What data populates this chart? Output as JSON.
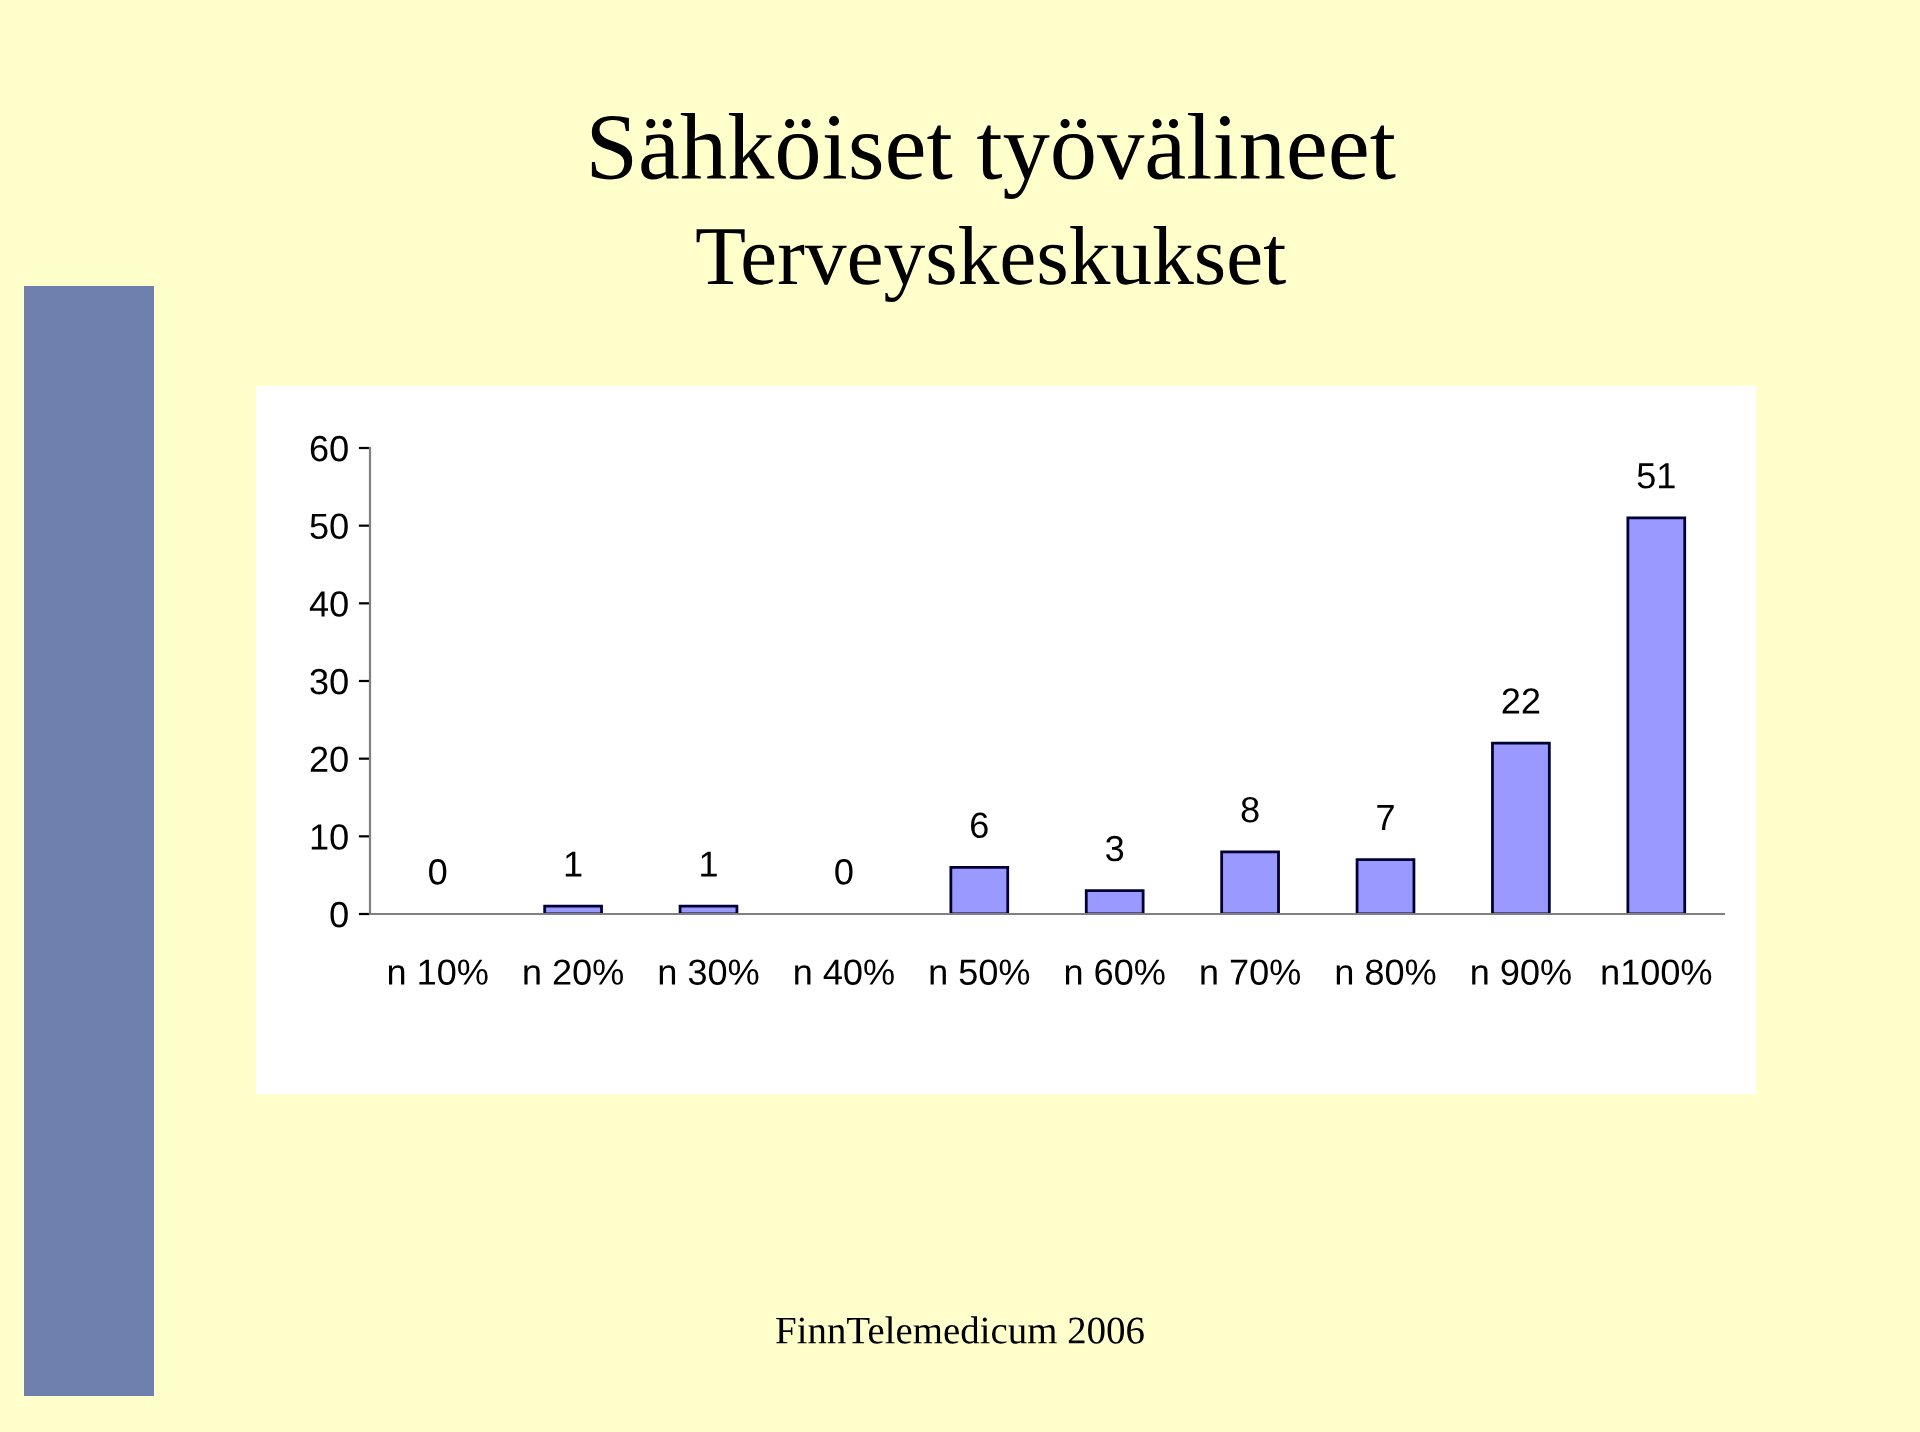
{
  "chart_data": {
    "type": "bar",
    "title": "Sähköiset työvälineet",
    "subtitle": "Terveyskeskukset",
    "categories": [
      "n 10%",
      "n 20%",
      "n 30%",
      "n 40%",
      "n 50%",
      "n 60%",
      "n 70%",
      "n 80%",
      "n 90%",
      "n100%"
    ],
    "values": [
      0,
      1,
      1,
      0,
      6,
      3,
      8,
      7,
      22,
      51
    ],
    "color": "#9999ff",
    "ylim": [
      0,
      60
    ],
    "yticks": [
      0,
      10,
      20,
      30,
      40,
      50,
      60
    ],
    "data_labels": true,
    "grid": false,
    "legend": false,
    "annotations": [
      "FinnTelemedicum 2006"
    ]
  }
}
